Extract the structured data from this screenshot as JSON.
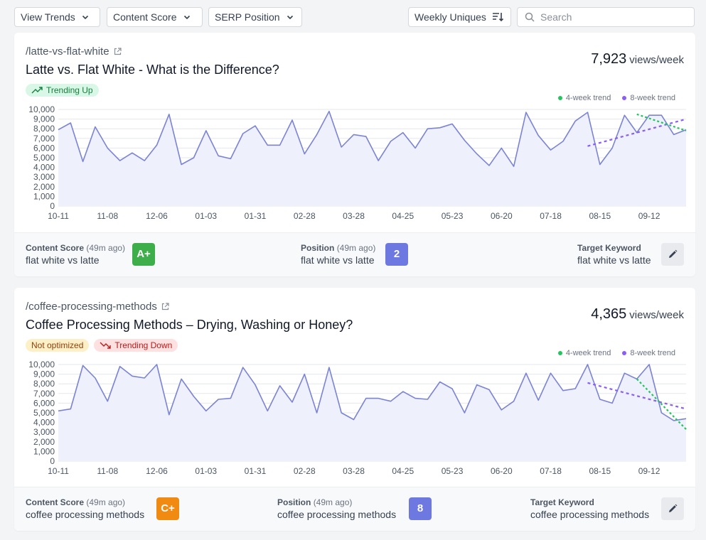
{
  "toolbar": {
    "view_trends": "View Trends",
    "content_score": "Content Score",
    "serp_position": "SERP Position",
    "sort_label": "Weekly Uniques",
    "search_placeholder": "Search"
  },
  "legend": {
    "trend4": "4-week trend",
    "trend8": "8-week trend",
    "trend4_color": "#22c55e",
    "trend8_color": "#8b5cf6"
  },
  "colors": {
    "line": "#7b83d6",
    "area": "#eef0fb",
    "grade_a": "#3dae4a",
    "grade_c": "#f08a10",
    "position": "#6d78e0"
  },
  "cards": [
    {
      "url": "/latte-vs-flat-white",
      "title": "Latte vs. Flat White - What is the Difference?",
      "views": "7,923",
      "views_unit": "views/week",
      "badges": [
        {
          "label": "Trending Up",
          "kind": "up"
        }
      ],
      "footer": {
        "content_score_label": "Content Score",
        "content_score_ago": "(49m ago)",
        "content_score_keyword": "flat white vs latte",
        "grade": "A+",
        "position_label": "Position",
        "position_ago": "(49m ago)",
        "position_keyword": "flat white vs latte",
        "position": "2",
        "target_label": "Target Keyword",
        "target_keyword": "flat white vs latte"
      }
    },
    {
      "url": "/coffee-processing-methods",
      "title": "Coffee Processing Methods – Drying, Washing or Honey?",
      "views": "4,365",
      "views_unit": "views/week",
      "badges": [
        {
          "label": "Not optimized",
          "kind": "notopt"
        },
        {
          "label": "Trending Down",
          "kind": "down"
        }
      ],
      "footer": {
        "content_score_label": "Content Score",
        "content_score_ago": "(49m ago)",
        "content_score_keyword": "coffee processing methods",
        "grade": "C+",
        "position_label": "Position",
        "position_ago": "(49m ago)",
        "position_keyword": "coffee processing methods",
        "position": "8",
        "target_label": "Target Keyword",
        "target_keyword": "coffee processing methods"
      }
    }
  ],
  "chart_data": [
    {
      "type": "line",
      "ylim": [
        0,
        10000
      ],
      "y_ticks": [
        "0",
        "1,000",
        "2,000",
        "3,000",
        "4,000",
        "5,000",
        "6,000",
        "7,000",
        "8,000",
        "9,000",
        "10,000"
      ],
      "x_tick_labels": [
        "10-11",
        "11-08",
        "12-06",
        "01-03",
        "01-31",
        "02-28",
        "03-28",
        "04-25",
        "05-23",
        "06-20",
        "07-18",
        "08-15",
        "09-12"
      ],
      "values": [
        7900,
        8600,
        4600,
        8200,
        6000,
        4700,
        5500,
        4700,
        6300,
        9500,
        4300,
        5000,
        7800,
        5200,
        4900,
        7500,
        8300,
        6300,
        6300,
        8900,
        5400,
        7400,
        9800,
        6100,
        7400,
        7200,
        4700,
        6700,
        7600,
        6000,
        8000,
        8100,
        8500,
        6800,
        5400,
        4200,
        6000,
        4100,
        9700,
        7300,
        5800,
        6700,
        8800,
        9700,
        4300,
        6000,
        9400,
        7600,
        9400,
        9400,
        7400,
        7900
      ],
      "trend_8week": [
        6200,
        9000
      ],
      "trend_4week": [
        9500,
        7800
      ]
    },
    {
      "type": "line",
      "ylim": [
        0,
        10000
      ],
      "y_ticks": [
        "0",
        "1,000",
        "2,000",
        "3,000",
        "4,000",
        "5,000",
        "6,000",
        "7,000",
        "8,000",
        "9,000",
        "10,000"
      ],
      "x_tick_labels": [
        "10-11",
        "11-08",
        "12-06",
        "01-03",
        "01-31",
        "02-28",
        "03-28",
        "04-25",
        "05-23",
        "06-20",
        "07-18",
        "08-15",
        "09-12"
      ],
      "values": [
        5200,
        5400,
        9900,
        8600,
        6200,
        9800,
        8800,
        8600,
        10000,
        4800,
        8500,
        6700,
        5200,
        6400,
        6500,
        9700,
        7900,
        5200,
        7800,
        6100,
        9000,
        5000,
        9700,
        5000,
        4300,
        6500,
        6500,
        6200,
        7200,
        6500,
        6400,
        8200,
        7500,
        5000,
        7900,
        7400,
        5300,
        6200,
        9100,
        6300,
        9100,
        7300,
        7500,
        10000,
        6400,
        6000,
        9100,
        8500,
        10000,
        5000,
        4200,
        4400
      ],
      "trend_8week": [
        8100,
        5400
      ],
      "trend_4week": [
        8500,
        3300
      ]
    }
  ]
}
